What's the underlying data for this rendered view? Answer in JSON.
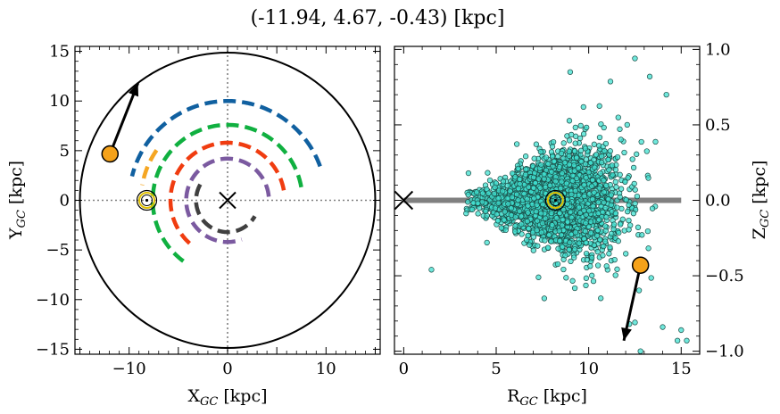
{
  "figure": {
    "title": "(-11.94, 4.67, -0.43) [kpc]"
  },
  "chart_data": [
    {
      "type": "line",
      "panel": "left",
      "xlabel_main": "X",
      "xlabel_sub": "GC",
      "xlabel_unit": " [kpc]",
      "ylabel_main": "Y",
      "ylabel_sub": "GC",
      "ylabel_unit": " [kpc]",
      "xlim": [
        -15.5,
        15.5
      ],
      "ylim": [
        -15.5,
        15.5
      ],
      "xticks": [
        -10,
        0,
        10
      ],
      "yticks": [
        -15,
        -10,
        -5,
        0,
        5,
        10,
        15
      ],
      "xtick_labels": [
        "−10",
        "0",
        "10"
      ],
      "ytick_labels": [
        "−15",
        "−10",
        "−5",
        "0",
        "5",
        "10",
        "15"
      ],
      "grid": false,
      "boundary_circle_radius": 15,
      "galactic_center": [
        0,
        0
      ],
      "sun": [
        -8.2,
        0
      ],
      "object": [
        -11.94,
        4.67
      ],
      "velocity_arrow_end": [
        -9.1,
        11.8
      ],
      "arms": [
        {
          "color": "#1060a0",
          "r": 10.0,
          "theta_deg": [
            20,
            166
          ]
        },
        {
          "color": "#f5a623",
          "r": 8.8,
          "theta_deg": [
            145,
            170
          ]
        },
        {
          "color": "#10b040",
          "r": 7.6,
          "theta_deg": [
            10,
            235
          ]
        },
        {
          "color": "#f03c10",
          "r": 5.8,
          "theta_deg": [
            10,
            230
          ]
        },
        {
          "color": "#7b5aa0",
          "r": 4.2,
          "theta_deg": [
            5,
            290
          ]
        },
        {
          "color": "#404040",
          "r": 3.2,
          "theta_deg": [
            150,
            330
          ]
        }
      ]
    },
    {
      "type": "scatter",
      "panel": "right",
      "xlabel_main": "R",
      "xlabel_sub": "GC",
      "xlabel_unit": " [kpc]",
      "ylabel_main": "Z",
      "ylabel_sub": "GC",
      "ylabel_unit": " [kpc]",
      "xlim": [
        -0.5,
        16.0
      ],
      "ylim": [
        -1.02,
        1.02
      ],
      "xticks": [
        0,
        5,
        10,
        15
      ],
      "yticks": [
        -1.0,
        -0.5,
        0.0,
        0.5,
        1.0
      ],
      "xtick_labels": [
        "0",
        "5",
        "10",
        "15"
      ],
      "ytick_labels": [
        "−1.0",
        "−0.5",
        "0.0",
        "0.5",
        "1.0"
      ],
      "grid": false,
      "disk_line": {
        "x": [
          0,
          15
        ],
        "y": 0,
        "color": "#808080"
      },
      "galactic_center": [
        0,
        0
      ],
      "sun": [
        8.2,
        0
      ],
      "object": [
        12.8,
        -0.43
      ],
      "velocity_arrow_end": [
        11.9,
        -0.93
      ],
      "point_color": "#40e0d0",
      "point_count": 2500,
      "point_distribution": {
        "r_center": 8.2,
        "r_sigma": 1.8,
        "z_sigma_base": 0.05,
        "z_sigma_flare": 0.2
      },
      "outlier_points": [
        {
          "x": 1.5,
          "y": -0.46
        },
        {
          "x": 12.5,
          "y": 0.94
        },
        {
          "x": 13.3,
          "y": 0.82
        },
        {
          "x": 14.2,
          "y": 0.7
        },
        {
          "x": 9.0,
          "y": 0.85
        },
        {
          "x": 7.6,
          "y": -0.65
        },
        {
          "x": 15.0,
          "y": -0.86
        },
        {
          "x": 15.3,
          "y": -0.93
        },
        {
          "x": 14.8,
          "y": -0.93
        },
        {
          "x": 14.0,
          "y": -0.84
        },
        {
          "x": 12.8,
          "y": -1.0
        },
        {
          "x": 4.5,
          "y": -0.28
        },
        {
          "x": 3.5,
          "y": 0.18
        },
        {
          "x": 12.2,
          "y": -0.82
        }
      ]
    }
  ]
}
